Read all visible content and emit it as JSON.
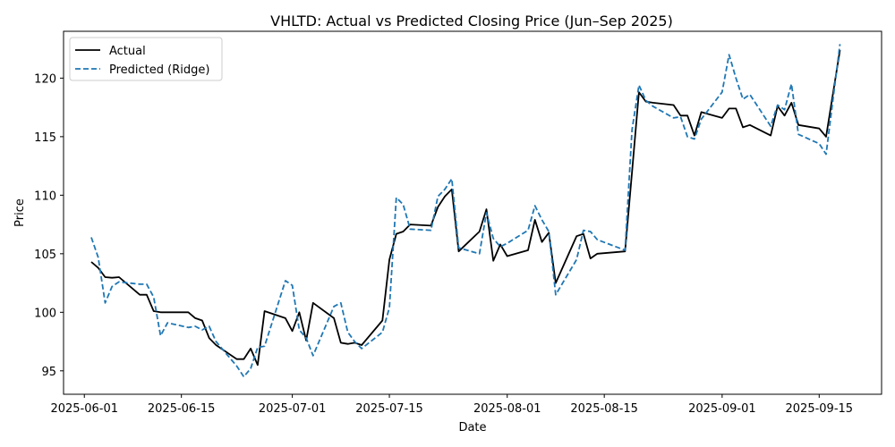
{
  "chart_data": {
    "type": "line",
    "title": "VHLTD: Actual vs Predicted Closing Price (Jun–Sep 2025)",
    "xlabel": "Date",
    "ylabel": "Price",
    "xlim": [
      "2025-05-29",
      "2025-09-24"
    ],
    "ylim": [
      93.0,
      124.0
    ],
    "x_ticks": [
      "2025-06-01",
      "2025-06-15",
      "2025-07-01",
      "2025-07-15",
      "2025-08-01",
      "2025-08-15",
      "2025-09-01",
      "2025-09-15"
    ],
    "y_ticks": [
      95,
      100,
      105,
      110,
      115,
      120
    ],
    "grid": false,
    "legend_position": "top-left",
    "series": [
      {
        "name": "Actual",
        "color": "#000000",
        "style": "solid",
        "points": [
          [
            "2025-06-02",
            104.3
          ],
          [
            "2025-06-03",
            103.8
          ],
          [
            "2025-06-04",
            103.0
          ],
          [
            "2025-06-05",
            102.95
          ],
          [
            "2025-06-06",
            103.0
          ],
          [
            "2025-06-09",
            101.5
          ],
          [
            "2025-06-10",
            101.5
          ],
          [
            "2025-06-11",
            100.1
          ],
          [
            "2025-06-12",
            100.0
          ],
          [
            "2025-06-13",
            100.0
          ],
          [
            "2025-06-16",
            100.0
          ],
          [
            "2025-06-17",
            99.5
          ],
          [
            "2025-06-18",
            99.3
          ],
          [
            "2025-06-19",
            97.8
          ],
          [
            "2025-06-20",
            97.2
          ],
          [
            "2025-06-23",
            96.0
          ],
          [
            "2025-06-24",
            96.0
          ],
          [
            "2025-06-25",
            96.9
          ],
          [
            "2025-06-26",
            95.5
          ],
          [
            "2025-06-27",
            100.1
          ],
          [
            "2025-06-30",
            99.5
          ],
          [
            "2025-07-01",
            98.4
          ],
          [
            "2025-07-02",
            100.0
          ],
          [
            "2025-07-03",
            97.6
          ],
          [
            "2025-07-04",
            100.8
          ],
          [
            "2025-07-07",
            99.5
          ],
          [
            "2025-07-08",
            97.4
          ],
          [
            "2025-07-09",
            97.3
          ],
          [
            "2025-07-10",
            97.4
          ],
          [
            "2025-07-11",
            97.2
          ],
          [
            "2025-07-14",
            99.3
          ],
          [
            "2025-07-15",
            104.5
          ],
          [
            "2025-07-16",
            106.7
          ],
          [
            "2025-07-17",
            106.9
          ],
          [
            "2025-07-18",
            107.5
          ],
          [
            "2025-07-21",
            107.4
          ],
          [
            "2025-07-22",
            109.0
          ],
          [
            "2025-07-23",
            109.9
          ],
          [
            "2025-07-24",
            110.5
          ],
          [
            "2025-07-25",
            105.2
          ],
          [
            "2025-07-28",
            106.9
          ],
          [
            "2025-07-29",
            108.8
          ],
          [
            "2025-07-30",
            104.4
          ],
          [
            "2025-07-31",
            105.8
          ],
          [
            "2025-08-01",
            104.8
          ],
          [
            "2025-08-04",
            105.3
          ],
          [
            "2025-08-05",
            107.9
          ],
          [
            "2025-08-06",
            106.0
          ],
          [
            "2025-08-07",
            106.8
          ],
          [
            "2025-08-08",
            102.5
          ],
          [
            "2025-08-11",
            106.5
          ],
          [
            "2025-08-12",
            106.7
          ],
          [
            "2025-08-13",
            104.6
          ],
          [
            "2025-08-14",
            105.0
          ],
          [
            "2025-08-18",
            105.2
          ],
          [
            "2025-08-19",
            112.0
          ],
          [
            "2025-08-20",
            118.8
          ],
          [
            "2025-08-21",
            118.0
          ],
          [
            "2025-08-22",
            117.9
          ],
          [
            "2025-08-25",
            117.7
          ],
          [
            "2025-08-26",
            116.8
          ],
          [
            "2025-08-27",
            116.8
          ],
          [
            "2025-08-28",
            115.1
          ],
          [
            "2025-08-29",
            117.1
          ],
          [
            "2025-09-01",
            116.6
          ],
          [
            "2025-09-02",
            117.4
          ],
          [
            "2025-09-03",
            117.4
          ],
          [
            "2025-09-04",
            115.8
          ],
          [
            "2025-09-05",
            116.0
          ],
          [
            "2025-09-08",
            115.1
          ],
          [
            "2025-09-09",
            117.6
          ],
          [
            "2025-09-10",
            116.8
          ],
          [
            "2025-09-11",
            117.9
          ],
          [
            "2025-09-12",
            116.0
          ],
          [
            "2025-09-15",
            115.7
          ],
          [
            "2025-09-16",
            115.0
          ],
          [
            "2025-09-18",
            122.4
          ]
        ]
      },
      {
        "name": "Predicted (Ridge)",
        "color": "#1f77b4",
        "style": "dashed",
        "points": [
          [
            "2025-06-02",
            106.4
          ],
          [
            "2025-06-03",
            104.7
          ],
          [
            "2025-06-04",
            100.8
          ],
          [
            "2025-06-05",
            102.2
          ],
          [
            "2025-06-06",
            102.6
          ],
          [
            "2025-06-09",
            102.4
          ],
          [
            "2025-06-10",
            102.4
          ],
          [
            "2025-06-11",
            101.3
          ],
          [
            "2025-06-12",
            98.0
          ],
          [
            "2025-06-13",
            99.1
          ],
          [
            "2025-06-16",
            98.7
          ],
          [
            "2025-06-17",
            98.8
          ],
          [
            "2025-06-18",
            98.5
          ],
          [
            "2025-06-19",
            98.8
          ],
          [
            "2025-06-20",
            97.5
          ],
          [
            "2025-06-23",
            95.4
          ],
          [
            "2025-06-24",
            94.5
          ],
          [
            "2025-06-25",
            95.2
          ],
          [
            "2025-06-26",
            97.0
          ],
          [
            "2025-06-27",
            97.1
          ],
          [
            "2025-06-30",
            102.7
          ],
          [
            "2025-07-01",
            102.3
          ],
          [
            "2025-07-02",
            98.5
          ],
          [
            "2025-07-03",
            97.8
          ],
          [
            "2025-07-04",
            96.3
          ],
          [
            "2025-07-07",
            100.5
          ],
          [
            "2025-07-08",
            100.8
          ],
          [
            "2025-07-09",
            98.3
          ],
          [
            "2025-07-10",
            97.5
          ],
          [
            "2025-07-11",
            96.9
          ],
          [
            "2025-07-14",
            98.3
          ],
          [
            "2025-07-15",
            100.4
          ],
          [
            "2025-07-16",
            109.8
          ],
          [
            "2025-07-17",
            109.2
          ],
          [
            "2025-07-18",
            107.1
          ],
          [
            "2025-07-21",
            107.0
          ],
          [
            "2025-07-22",
            109.9
          ],
          [
            "2025-07-23",
            110.5
          ],
          [
            "2025-07-24",
            111.4
          ],
          [
            "2025-07-25",
            105.5
          ],
          [
            "2025-07-28",
            105.0
          ],
          [
            "2025-07-29",
            108.5
          ],
          [
            "2025-07-30",
            106.3
          ],
          [
            "2025-07-31",
            105.6
          ],
          [
            "2025-08-01",
            105.9
          ],
          [
            "2025-08-04",
            107.0
          ],
          [
            "2025-08-05",
            109.1
          ],
          [
            "2025-08-06",
            107.9
          ],
          [
            "2025-08-07",
            106.9
          ],
          [
            "2025-08-08",
            101.5
          ],
          [
            "2025-08-11",
            104.5
          ],
          [
            "2025-08-12",
            107.0
          ],
          [
            "2025-08-13",
            106.9
          ],
          [
            "2025-08-14",
            106.2
          ],
          [
            "2025-08-18",
            105.3
          ],
          [
            "2025-08-19",
            115.6
          ],
          [
            "2025-08-20",
            119.4
          ],
          [
            "2025-08-21",
            118.1
          ],
          [
            "2025-08-22",
            117.6
          ],
          [
            "2025-08-25",
            116.6
          ],
          [
            "2025-08-26",
            116.7
          ],
          [
            "2025-08-27",
            115.0
          ],
          [
            "2025-08-28",
            114.8
          ],
          [
            "2025-08-29",
            116.5
          ],
          [
            "2025-09-01",
            118.8
          ],
          [
            "2025-09-02",
            122.0
          ],
          [
            "2025-09-03",
            120.0
          ],
          [
            "2025-09-04",
            118.2
          ],
          [
            "2025-09-05",
            118.6
          ],
          [
            "2025-09-08",
            115.9
          ],
          [
            "2025-09-09",
            117.7
          ],
          [
            "2025-09-10",
            117.3
          ],
          [
            "2025-09-11",
            119.5
          ],
          [
            "2025-09-12",
            115.2
          ],
          [
            "2025-09-15",
            114.4
          ],
          [
            "2025-09-16",
            113.5
          ],
          [
            "2025-09-18",
            122.9
          ]
        ]
      }
    ]
  }
}
